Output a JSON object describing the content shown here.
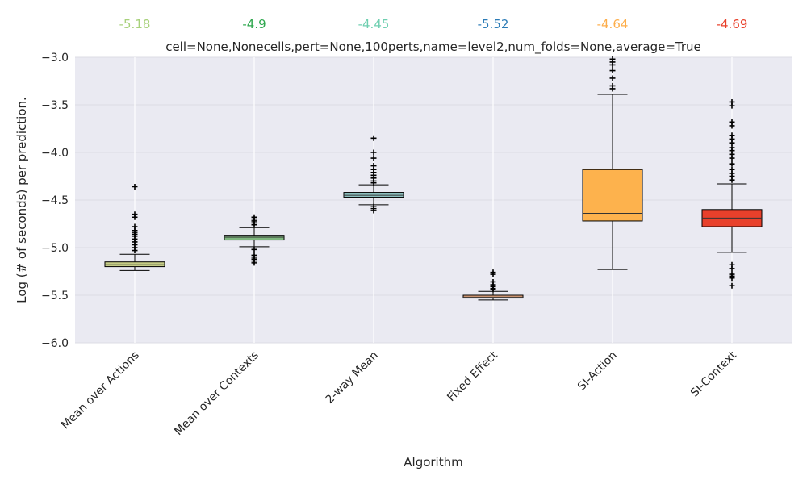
{
  "chart_data": {
    "type": "box",
    "title": "cell=None,Nonecells,pert=None,100perts,name=level2,num_folds=None,average=True",
    "xlabel": "Algorithm",
    "ylabel": "Log (# of seconds) per prediction.",
    "ylim": [
      -6.0,
      -3.0
    ],
    "yticks": [
      -3.0,
      -3.5,
      -4.0,
      -4.5,
      -5.0,
      -5.5,
      -6.0
    ],
    "ytick_labels": [
      "−3.0",
      "−3.5",
      "−4.0",
      "−4.5",
      "−5.0",
      "−5.5",
      "−6.0"
    ],
    "grid": true,
    "categories": [
      "Mean over Actions",
      "Mean over Contexts",
      "2-way Mean",
      "Fixed Effect",
      "SI-Action",
      "SI-Context"
    ],
    "median_labels": [
      "-5.18",
      "-4.9",
      "-4.45",
      "-5.52",
      "-4.64",
      "-4.69"
    ],
    "colors": [
      "#a8d17b",
      "#2fa84f",
      "#6fcfb0",
      "#2b7bb6",
      "#fdae4b",
      "#e8402b"
    ],
    "box_colors": [
      "#c5cc86",
      "#7fb77f",
      "#93c9c7",
      "#e0a37c",
      "#fdb24d",
      "#e8402b"
    ],
    "series": [
      {
        "whisker_low": -5.24,
        "q1": -5.2,
        "median": -5.18,
        "q3": -5.15,
        "whisker_high": -5.07,
        "outliers": [
          -4.36,
          -4.65,
          -4.68,
          -4.78,
          -4.82,
          -4.84,
          -4.86,
          -4.88,
          -4.91,
          -4.94,
          -4.97,
          -5.0,
          -5.03
        ]
      },
      {
        "whisker_low": -4.99,
        "q1": -4.92,
        "median": -4.89,
        "q3": -4.87,
        "whisker_high": -4.79,
        "outliers": [
          -4.68,
          -4.7,
          -4.72,
          -4.74,
          -4.76,
          -5.02,
          -5.08,
          -5.1,
          -5.12,
          -5.14,
          -5.16
        ]
      },
      {
        "whisker_low": -4.55,
        "q1": -4.47,
        "median": -4.45,
        "q3": -4.42,
        "whisker_high": -4.34,
        "outliers": [
          -3.85,
          -4.0,
          -4.06,
          -4.14,
          -4.18,
          -4.21,
          -4.24,
          -4.27,
          -4.3,
          -4.32,
          -4.57,
          -4.59,
          -4.61
        ]
      },
      {
        "whisker_low": -5.55,
        "q1": -5.53,
        "median": -5.52,
        "q3": -5.5,
        "whisker_high": -5.46,
        "outliers": [
          -5.26,
          -5.28,
          -5.36,
          -5.39,
          -5.41,
          -5.43,
          -5.44
        ]
      },
      {
        "whisker_low": -5.23,
        "q1": -4.72,
        "median": -4.64,
        "q3": -4.18,
        "whisker_high": -3.39,
        "outliers": [
          -3.02,
          -3.05,
          -3.08,
          -3.14,
          -3.22,
          -3.3,
          -3.33
        ]
      },
      {
        "whisker_low": -5.05,
        "q1": -4.78,
        "median": -4.69,
        "q3": -4.6,
        "whisker_high": -4.33,
        "outliers": [
          -3.47,
          -3.51,
          -3.68,
          -3.72,
          -3.82,
          -3.86,
          -3.9,
          -3.95,
          -3.98,
          -4.02,
          -4.06,
          -4.12,
          -4.18,
          -4.22,
          -4.25,
          -4.29,
          -5.18,
          -5.22,
          -5.28,
          -5.3,
          -5.32,
          -5.4
        ]
      }
    ]
  }
}
